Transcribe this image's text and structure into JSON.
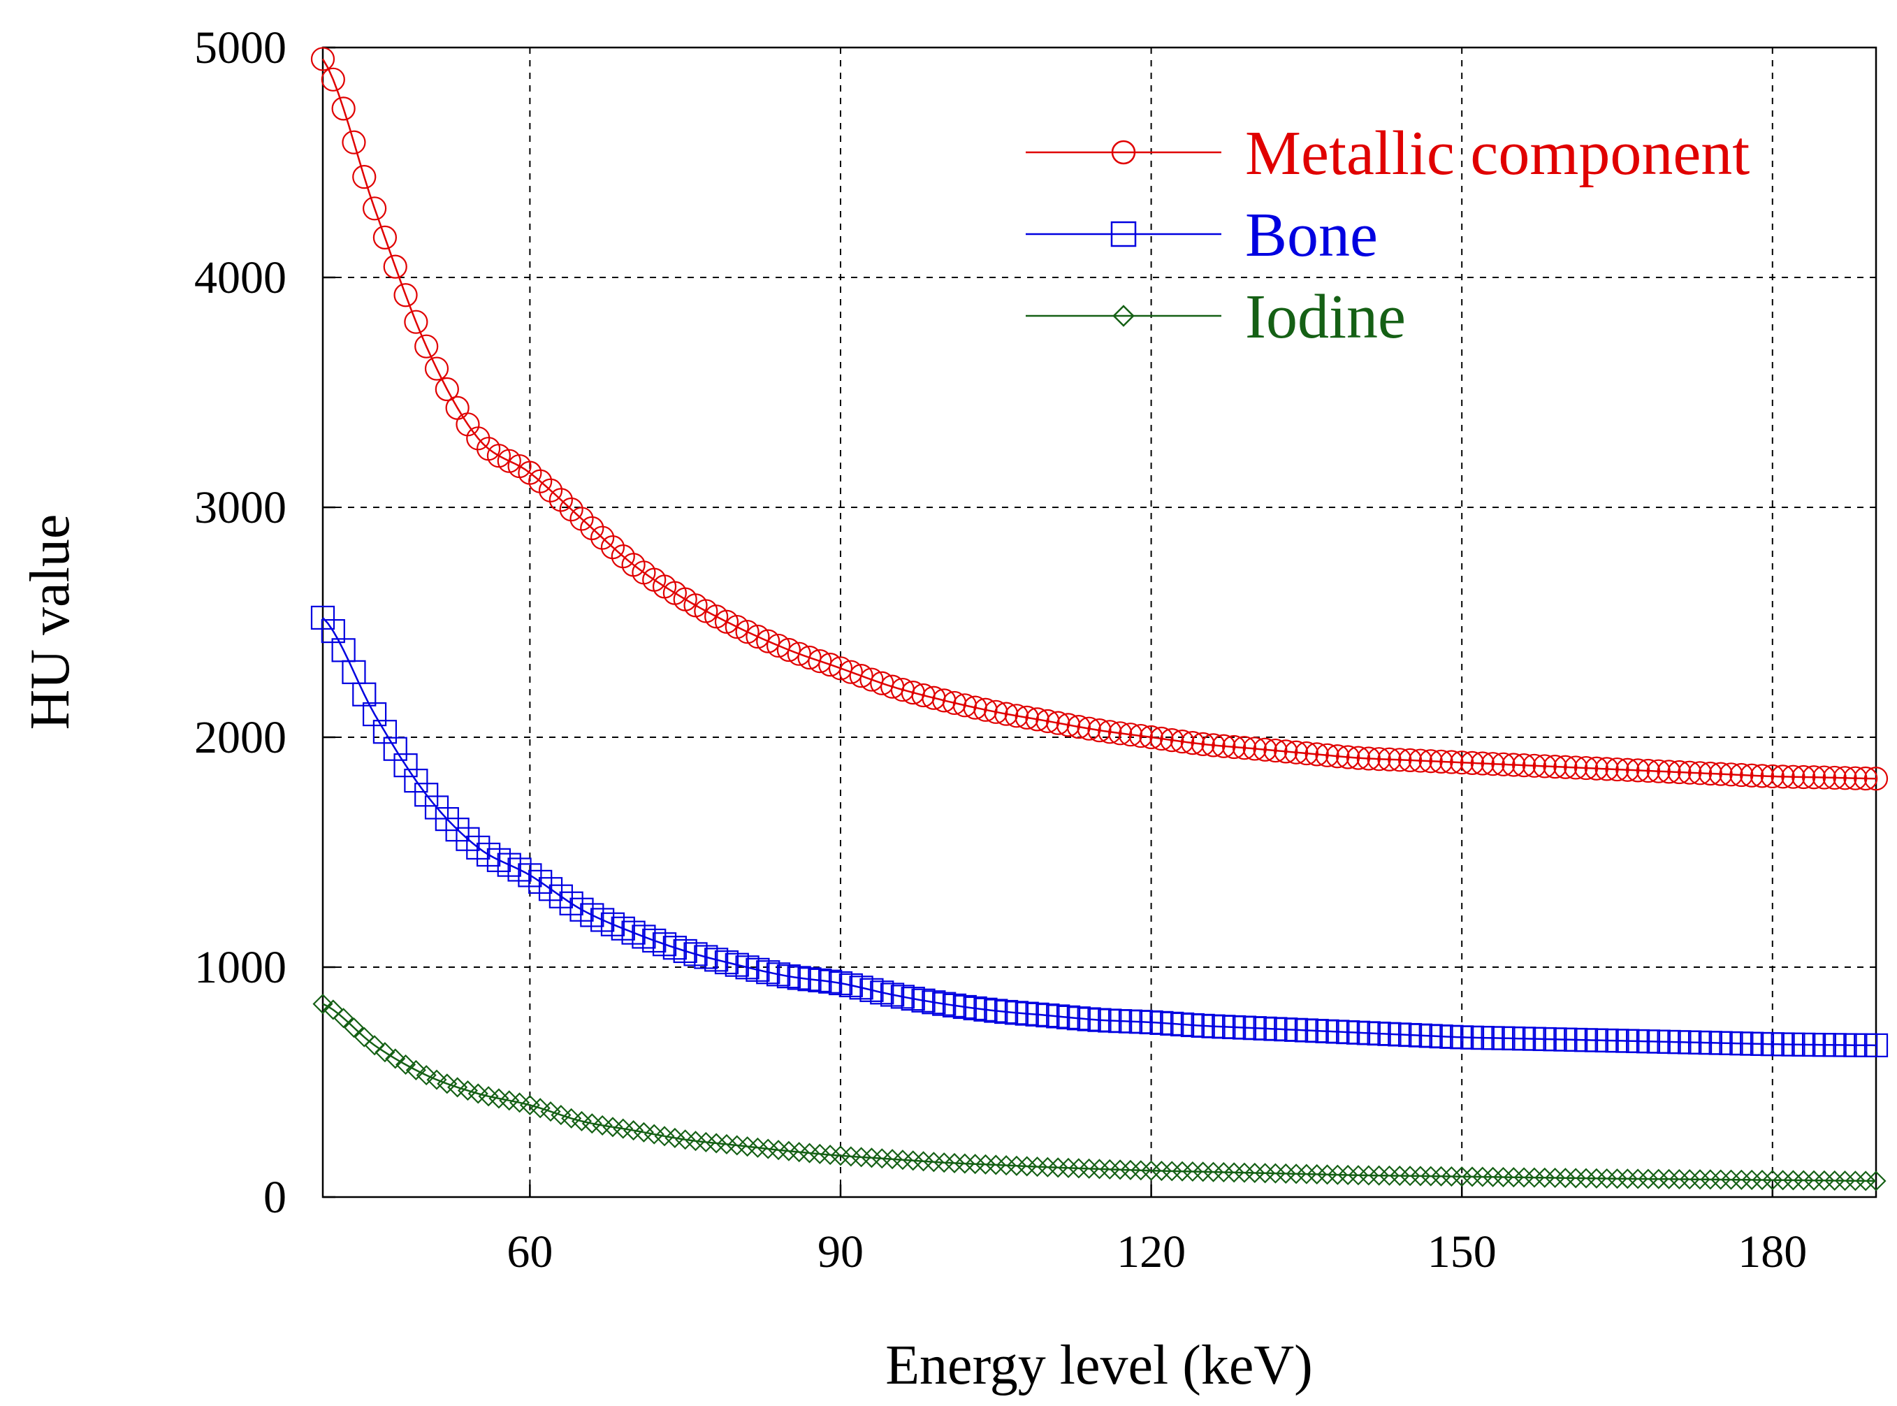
{
  "chart_data": {
    "type": "line",
    "title": "",
    "xlabel": "Energy level (keV)",
    "ylabel": "HU value",
    "xlim": [
      40,
      190
    ],
    "ylim": [
      0,
      5000
    ],
    "x_ticks": [
      60,
      90,
      120,
      150,
      180
    ],
    "x_tick_labels": [
      "60",
      "90",
      "120",
      "150",
      "180"
    ],
    "y_ticks": [
      0,
      1000,
      2000,
      3000,
      4000,
      5000
    ],
    "y_tick_labels": [
      "0",
      "1000",
      "2000",
      "3000",
      "4000",
      "5000"
    ],
    "grid": true,
    "legend_position": "top-right",
    "x": [
      40,
      45,
      50,
      55,
      60,
      65,
      70,
      75,
      80,
      85,
      90,
      95,
      100,
      105,
      110,
      115,
      120,
      125,
      130,
      135,
      140,
      145,
      150,
      155,
      160,
      165,
      170,
      175,
      180,
      185,
      190
    ],
    "series": [
      {
        "name": "Metallic component",
        "marker": "circle",
        "color": "#e00000",
        "values": [
          4950,
          4300,
          3700,
          3300,
          3150,
          2950,
          2750,
          2600,
          2480,
          2380,
          2300,
          2220,
          2160,
          2110,
          2070,
          2030,
          2000,
          1970,
          1950,
          1930,
          1910,
          1900,
          1890,
          1880,
          1870,
          1860,
          1850,
          1840,
          1830,
          1825,
          1820
        ]
      },
      {
        "name": "Bone",
        "marker": "square",
        "color": "#0000e0",
        "values": [
          2520,
          2100,
          1750,
          1520,
          1400,
          1250,
          1150,
          1070,
          1010,
          960,
          930,
          880,
          840,
          810,
          790,
          770,
          760,
          745,
          735,
          725,
          715,
          705,
          695,
          690,
          685,
          680,
          675,
          670,
          665,
          662,
          660
        ]
      },
      {
        "name": "Iodine",
        "marker": "diamond",
        "color": "#156015",
        "values": [
          840,
          660,
          530,
          450,
          400,
          330,
          290,
          250,
          225,
          200,
          180,
          165,
          150,
          140,
          130,
          122,
          115,
          110,
          105,
          100,
          95,
          92,
          89,
          86,
          83,
          80,
          78,
          76,
          74,
          72,
          70
        ]
      }
    ]
  }
}
